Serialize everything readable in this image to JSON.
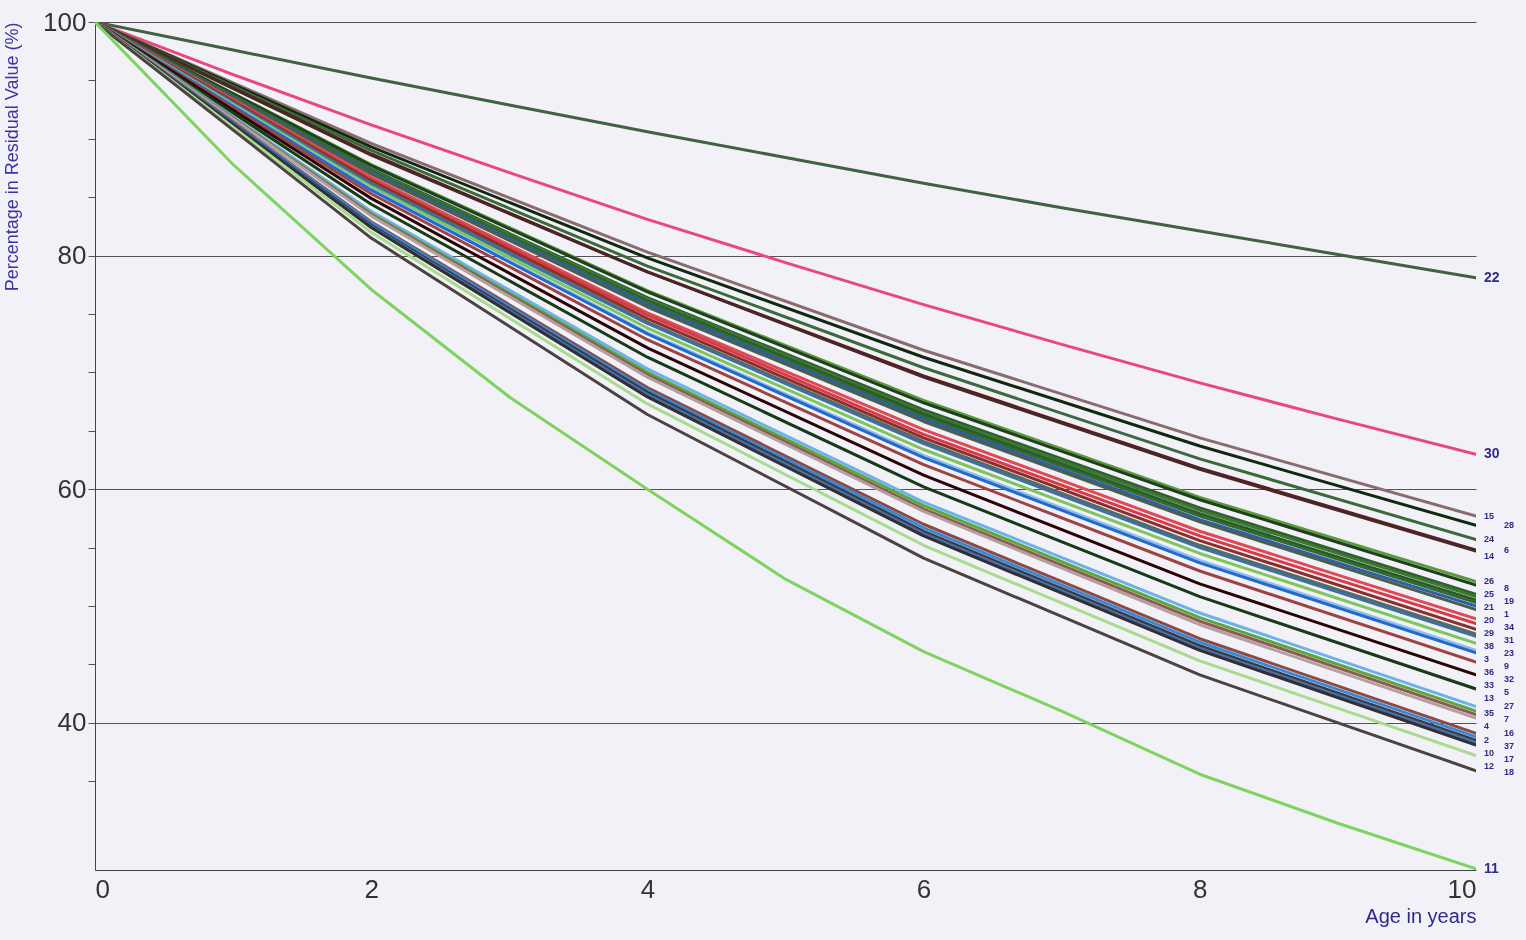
{
  "chart_data": {
    "type": "line",
    "xlabel": "Age in years",
    "ylabel": "Percentage in Residual Value (%)",
    "x": [
      0,
      2,
      4,
      6,
      8,
      10
    ],
    "xlim": [
      0,
      10
    ],
    "xticks": [
      0,
      2,
      4,
      6,
      8,
      10
    ],
    "ylim": [
      27.4,
      100
    ],
    "yticks": [
      {
        "value": 35,
        "label": null
      },
      40,
      {
        "value": 45,
        "label": null
      },
      {
        "value": 50,
        "label": null
      },
      {
        "value": 55,
        "label": null
      },
      60,
      {
        "value": 65,
        "label": null
      },
      {
        "value": 70,
        "label": null
      },
      {
        "value": 75,
        "label": null
      },
      80,
      {
        "value": 85,
        "label": null
      },
      {
        "value": 90,
        "label": null
      },
      {
        "value": 95,
        "label": null
      },
      100
    ],
    "grid": "y",
    "legend": false,
    "marker": "none",
    "line_style": "solid",
    "series": [
      {
        "name": "22",
        "color": "#3f6340",
        "x": [
          0,
          1,
          2,
          3,
          4,
          5,
          6,
          7,
          8,
          9,
          10
        ],
        "values": [
          100,
          97.6,
          95.2,
          92.9,
          90.6,
          88.4,
          86.2,
          84.1,
          82.1,
          80.1,
          78.1
        ]
      },
      {
        "name": "30",
        "color": "#e8487e",
        "x": [
          0,
          1,
          2,
          3,
          4,
          5,
          6,
          7,
          8,
          9,
          10
        ],
        "values": [
          100,
          95.5,
          91.2,
          87.1,
          83.1,
          79.4,
          75.8,
          72.4,
          69.1,
          66.0,
          63.0
        ]
      },
      {
        "name": "15",
        "color": "#8a6c6c",
        "values": [
          100,
          89.6,
          80.3,
          71.9,
          64.4,
          57.7
        ]
      },
      {
        "name": "28",
        "color": "#102a10",
        "values": [
          100,
          89.3,
          79.8,
          71.3,
          63.7,
          56.9
        ]
      },
      {
        "name": "24",
        "color": "#3a6a3a",
        "values": [
          100,
          89.0,
          79.1,
          70.4,
          62.6,
          55.7
        ]
      },
      {
        "name": "6",
        "color": "#5c1f1f",
        "values": [
          100,
          88.7,
          78.6,
          69.7,
          61.8,
          54.8
        ]
      },
      {
        "name": "14",
        "color": "#4a2626",
        "values": [
          100,
          88.6,
          78.6,
          69.6,
          61.7,
          54.7
        ]
      },
      {
        "name": "26",
        "color": "#5a9a3c",
        "values": [
          100,
          87.8,
          77.0,
          67.6,
          59.3,
          52.1
        ]
      },
      {
        "name": "8",
        "color": "#1f3f1f",
        "values": [
          100,
          87.7,
          76.9,
          67.4,
          59.1,
          51.8
        ]
      },
      {
        "name": "25",
        "color": "#2f5f2f",
        "values": [
          100,
          87.4,
          76.4,
          66.8,
          58.4,
          51.0
        ]
      },
      {
        "name": "19",
        "color": "#3a7a30",
        "values": [
          100,
          87.3,
          76.3,
          66.6,
          58.2,
          50.8
        ]
      },
      {
        "name": "21",
        "color": "#2a5a2a",
        "values": [
          100,
          87.2,
          76.1,
          66.4,
          57.9,
          50.5
        ]
      },
      {
        "name": "1",
        "color": "#356b2c",
        "values": [
          100,
          87.2,
          76.0,
          66.2,
          57.7,
          50.3
        ]
      },
      {
        "name": "20",
        "color": "#2a5fb0",
        "values": [
          100,
          87.1,
          75.8,
          66.0,
          57.4,
          50.0
        ]
      },
      {
        "name": "34",
        "color": "#4d5e4d",
        "values": [
          100,
          87.0,
          75.6,
          65.8,
          57.2,
          49.7
        ]
      },
      {
        "name": "29",
        "color": "#e04a55",
        "values": [
          100,
          86.7,
          75.1,
          65.1,
          56.4,
          48.9
        ]
      },
      {
        "name": "31",
        "color": "#d83b48",
        "values": [
          100,
          86.5,
          74.9,
          64.7,
          56.0,
          48.5
        ]
      },
      {
        "name": "38",
        "color": "#8c2e2e",
        "values": [
          100,
          86.4,
          74.6,
          64.4,
          55.6,
          48.0
        ]
      },
      {
        "name": "23",
        "color": "#586b58",
        "values": [
          100,
          86.2,
          74.3,
          64.1,
          55.2,
          47.6
        ]
      },
      {
        "name": "3",
        "color": "#3d6fa0",
        "values": [
          100,
          86.1,
          74.2,
          63.9,
          55.0,
          47.4
        ]
      },
      {
        "name": "9",
        "color": "#7cc65a",
        "values": [
          100,
          85.9,
          73.8,
          63.4,
          54.5,
          46.8
        ]
      },
      {
        "name": "36",
        "color": "#8cc0e6",
        "values": [
          100,
          85.7,
          73.4,
          62.9,
          53.9,
          46.2
        ]
      },
      {
        "name": "32",
        "color": "#2468d0",
        "values": [
          100,
          85.6,
          73.3,
          62.7,
          53.7,
          46.0
        ]
      },
      {
        "name": "33",
        "color": "#9c4444",
        "values": [
          100,
          85.3,
          72.8,
          62.1,
          53.0,
          45.2
        ]
      },
      {
        "name": "5",
        "color": "#2a0404",
        "values": [
          100,
          84.9,
          72.1,
          61.2,
          51.9,
          44.1
        ]
      },
      {
        "name": "13",
        "color": "#173a17",
        "values": [
          100,
          84.4,
          71.3,
          60.2,
          50.8,
          42.9
        ]
      },
      {
        "name": "27",
        "color": "#6cb2ea",
        "values": [
          100,
          83.8,
          70.3,
          58.9,
          49.4,
          41.4
        ]
      },
      {
        "name": "35",
        "color": "#5aa83c",
        "values": [
          100,
          83.6,
          70.0,
          58.6,
          49.0,
          41.0
        ]
      },
      {
        "name": "7",
        "color": "#8e5a54",
        "values": [
          100,
          83.5,
          69.8,
          58.3,
          48.7,
          40.7
        ]
      },
      {
        "name": "4",
        "color": "#b3a09e",
        "values": [
          100,
          83.4,
          69.6,
          58.1,
          48.4,
          40.4
        ]
      },
      {
        "name": "16",
        "color": "#8c4a44",
        "values": [
          100,
          82.9,
          68.7,
          57.0,
          47.2,
          39.1
        ]
      },
      {
        "name": "2",
        "color": "#3a86d6",
        "values": [
          100,
          82.8,
          68.5,
          56.7,
          46.9,
          38.8
        ]
      },
      {
        "name": "37",
        "color": "#3a3840",
        "values": [
          100,
          82.6,
          68.3,
          56.4,
          46.6,
          38.5
        ]
      },
      {
        "name": "10",
        "color": "#4a6fa0",
        "values": [
          100,
          82.5,
          68.1,
          56.2,
          46.4,
          38.3
        ]
      },
      {
        "name": "17",
        "color": "#2f2f35",
        "values": [
          100,
          82.4,
          67.9,
          56.0,
          46.2,
          38.1
        ]
      },
      {
        "name": "12",
        "color": "#a8dc8c",
        "values": [
          100,
          82.0,
          67.3,
          55.2,
          45.3,
          37.2
        ]
      },
      {
        "name": "18",
        "color": "#4d4242",
        "values": [
          100,
          81.5,
          66.4,
          54.1,
          44.1,
          35.9
        ]
      },
      {
        "name": "11",
        "color": "#7ed460",
        "x": [
          0,
          1,
          2,
          3,
          4,
          5,
          6,
          7,
          8,
          9,
          10
        ],
        "values": [
          100,
          87.8,
          77.1,
          67.9,
          60.0,
          52.3,
          46.1,
          41.0,
          35.6,
          31.4,
          27.5
        ]
      }
    ]
  }
}
